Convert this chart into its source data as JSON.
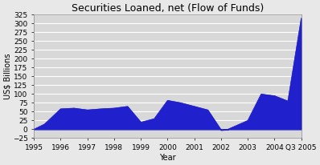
{
  "title": "Securities Loaned, net (Flow of Funds)",
  "xlabel": "Year",
  "ylabel": "US$ Billions",
  "x_labels": [
    "1995",
    "1996",
    "1997",
    "1998",
    "1999",
    "2000",
    "2001",
    "2002",
    "2003",
    "2004",
    "Q3 2005"
  ],
  "x_tick_positions": [
    0,
    1,
    2,
    3,
    4,
    5,
    6,
    7,
    8,
    9,
    10
  ],
  "x_values": [
    0,
    0.4,
    1,
    1.5,
    2,
    2.5,
    3,
    3.5,
    4,
    4.5,
    5,
    5.5,
    6,
    6.5,
    7,
    7.25,
    8,
    8.5,
    9,
    9.5,
    10
  ],
  "y_values": [
    0,
    15,
    58,
    60,
    55,
    58,
    60,
    65,
    20,
    30,
    82,
    75,
    65,
    55,
    -2,
    0,
    25,
    100,
    95,
    80,
    315
  ],
  "fill_color": "#2020CC",
  "line_color": "#2020CC",
  "bg_color": "#e8e8e8",
  "plot_bg_color": "#d8d8d8",
  "grid_color": "#ffffff",
  "ylim": [
    -25,
    325
  ],
  "yticks": [
    -25,
    0,
    25,
    50,
    75,
    100,
    125,
    150,
    175,
    200,
    225,
    250,
    275,
    300,
    325
  ],
  "title_fontsize": 9,
  "axis_label_fontsize": 7,
  "tick_fontsize": 6.5
}
